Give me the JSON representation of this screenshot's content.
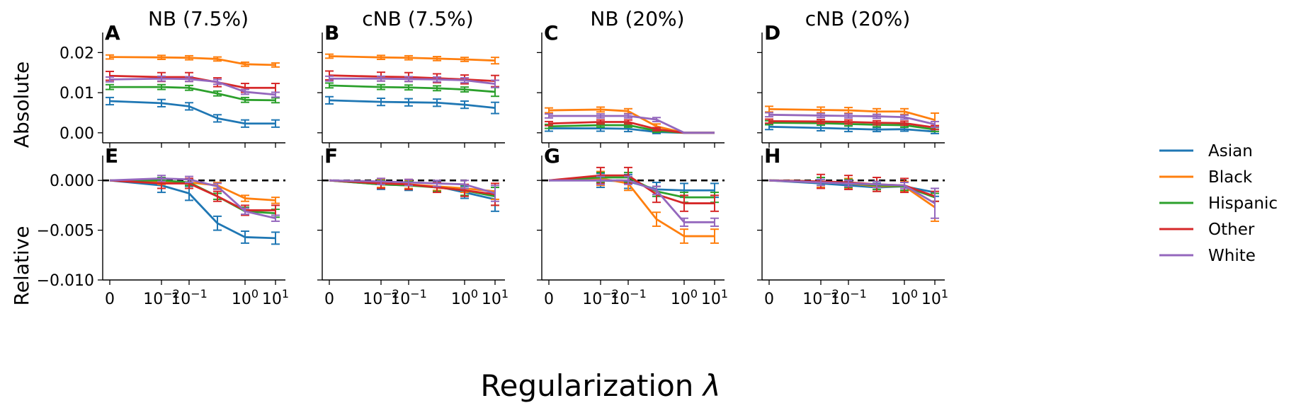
{
  "chart_data": {
    "type": "line",
    "xlabel": "Regularization λ",
    "x_categories": [
      "0",
      "10^-2",
      "10^-1",
      "10^0",
      "10^1"
    ],
    "x": [
      0,
      0.0125,
      0.075,
      0.4,
      2.0,
      10.0
    ],
    "row_labels": [
      "Absolute",
      "Relative"
    ],
    "legend": [
      "Asian",
      "Black",
      "Hispanic",
      "Other",
      "White"
    ],
    "colors": {
      "Asian": "#1f77b4",
      "Black": "#ff7f0e",
      "Hispanic": "#2ca02c",
      "Other": "#d62728",
      "White": "#9467bd"
    },
    "rows": [
      {
        "name": "Absolute",
        "ylim": [
          -0.0025,
          0.025
        ],
        "yticks": [
          "0.00",
          "0.01",
          "0.02"
        ],
        "ytick_values": [
          0,
          0.01,
          0.02
        ]
      },
      {
        "name": "Relative",
        "ylim": [
          -0.01,
          0.0025
        ],
        "yticks": [
          "−0.010",
          "−0.005",
          "0.000"
        ],
        "ytick_values": [
          -0.01,
          -0.005,
          0
        ],
        "zero_line": true
      }
    ],
    "panels": [
      {
        "letter": "A",
        "title": "NB (7.5%)",
        "row": 0,
        "col": 0,
        "series": [
          {
            "name": "Asian",
            "values": [
              0.0079,
              0.0074,
              0.0066,
              0.0036,
              0.0023,
              0.0023
            ],
            "err": [
              0.0009,
              0.0009,
              0.0009,
              0.0009,
              0.0009,
              0.0009
            ]
          },
          {
            "name": "Black",
            "values": [
              0.0189,
              0.0188,
              0.0187,
              0.0184,
              0.0171,
              0.0169
            ],
            "err": [
              0.0005,
              0.0005,
              0.0005,
              0.0005,
              0.0005,
              0.0005
            ]
          },
          {
            "name": "Hispanic",
            "values": [
              0.0114,
              0.0114,
              0.0112,
              0.0098,
              0.0082,
              0.0081
            ],
            "err": [
              0.0006,
              0.0006,
              0.0006,
              0.0006,
              0.0006,
              0.0006
            ]
          },
          {
            "name": "Other",
            "values": [
              0.0142,
              0.0139,
              0.0139,
              0.0126,
              0.0112,
              0.0112
            ],
            "err": [
              0.0011,
              0.0011,
              0.0011,
              0.0011,
              0.0011,
              0.0011
            ]
          },
          {
            "name": "White",
            "values": [
              0.0133,
              0.0135,
              0.0134,
              0.0127,
              0.0102,
              0.0095
            ],
            "err": [
              0.0006,
              0.0006,
              0.0006,
              0.0006,
              0.0006,
              0.0006
            ]
          }
        ]
      },
      {
        "letter": "B",
        "title": "cNB (7.5%)",
        "row": 0,
        "col": 1,
        "series": [
          {
            "name": "Asian",
            "values": [
              0.0081,
              0.0077,
              0.0076,
              0.0075,
              0.007,
              0.0062
            ],
            "err": [
              0.0009,
              0.0009,
              0.0009,
              0.0009,
              0.0009,
              0.0014
            ]
          },
          {
            "name": "Black",
            "values": [
              0.0191,
              0.0188,
              0.0187,
              0.0185,
              0.0183,
              0.018
            ],
            "err": [
              0.0005,
              0.0005,
              0.0005,
              0.0005,
              0.0005,
              0.0008
            ]
          },
          {
            "name": "Hispanic",
            "values": [
              0.0118,
              0.0114,
              0.0113,
              0.0111,
              0.0108,
              0.0102
            ],
            "err": [
              0.0006,
              0.0006,
              0.0006,
              0.0006,
              0.0006,
              0.0011
            ]
          },
          {
            "name": "Other",
            "values": [
              0.0143,
              0.014,
              0.0139,
              0.0136,
              0.0133,
              0.0129
            ],
            "err": [
              0.0011,
              0.0011,
              0.0011,
              0.0011,
              0.0011,
              0.0014
            ]
          },
          {
            "name": "White",
            "values": [
              0.0135,
              0.0135,
              0.0134,
              0.0133,
              0.0131,
              0.0122
            ],
            "err": [
              0.0006,
              0.0006,
              0.0006,
              0.0006,
              0.0006,
              0.0009
            ]
          }
        ]
      },
      {
        "letter": "C",
        "title": "NB (20%)",
        "row": 0,
        "col": 2,
        "series": [
          {
            "name": "Asian",
            "values": [
              0.0011,
              0.0011,
              0.001,
              0.0002,
              0.0,
              0.0
            ],
            "err": [
              0.0007,
              0.0007,
              0.0007,
              0.0004,
              0,
              0
            ]
          },
          {
            "name": "Black",
            "values": [
              0.0056,
              0.0058,
              0.0054,
              0.0016,
              0.0,
              0.0
            ],
            "err": [
              0.0006,
              0.0006,
              0.0006,
              0.0006,
              0,
              0
            ]
          },
          {
            "name": "Hispanic",
            "values": [
              0.0016,
              0.0019,
              0.0019,
              0.0005,
              0.0,
              0.0
            ],
            "err": [
              0.0005,
              0.0005,
              0.0005,
              0.0004,
              0,
              0
            ]
          },
          {
            "name": "Other",
            "values": [
              0.0023,
              0.0027,
              0.0027,
              0.0009,
              0.0,
              0.0
            ],
            "err": [
              0.0005,
              0.0005,
              0.0005,
              0.0004,
              0,
              0
            ]
          },
          {
            "name": "White",
            "values": [
              0.0042,
              0.0042,
              0.0042,
              0.0033,
              0.0,
              0.0
            ],
            "err": [
              0.0005,
              0.0005,
              0.0005,
              0.0005,
              0,
              0
            ]
          }
        ]
      },
      {
        "letter": "D",
        "title": "cNB (20%)",
        "row": 0,
        "col": 3,
        "series": [
          {
            "name": "Asian",
            "values": [
              0.0015,
              0.0012,
              0.001,
              0.0008,
              0.0009,
              0.0003
            ],
            "err": [
              0.0007,
              0.0007,
              0.0007,
              0.0005,
              0.0005,
              0.0005
            ]
          },
          {
            "name": "Black",
            "values": [
              0.0059,
              0.0057,
              0.0056,
              0.0053,
              0.0053,
              0.0032
            ],
            "err": [
              0.0007,
              0.0007,
              0.0007,
              0.0007,
              0.0007,
              0.0017
            ]
          },
          {
            "name": "Hispanic",
            "values": [
              0.0025,
              0.0024,
              0.0022,
              0.002,
              0.0019,
              0.0008
            ],
            "err": [
              0.0005,
              0.0005,
              0.0005,
              0.0005,
              0.0005,
              0.0005
            ]
          },
          {
            "name": "Other",
            "values": [
              0.0029,
              0.0028,
              0.0027,
              0.0025,
              0.0024,
              0.0013
            ],
            "err": [
              0.0005,
              0.0005,
              0.0005,
              0.0005,
              0.0005,
              0.0005
            ]
          },
          {
            "name": "White",
            "values": [
              0.0045,
              0.0043,
              0.0042,
              0.0041,
              0.0039,
              0.0021
            ],
            "err": [
              0.0005,
              0.0005,
              0.0005,
              0.0005,
              0.0005,
              0.0007
            ]
          }
        ]
      },
      {
        "letter": "E",
        "title": "",
        "row": 1,
        "col": 0,
        "series": [
          {
            "name": "Asian",
            "values": [
              0.0,
              -0.0005,
              -0.0013,
              -0.0043,
              -0.0057,
              -0.0058
            ],
            "err": [
              0,
              0.0007,
              0.0007,
              0.0007,
              0.0006,
              0.0006
            ]
          },
          {
            "name": "Black",
            "values": [
              0.0,
              -0.0001,
              -0.0002,
              -0.0005,
              -0.0018,
              -0.002
            ],
            "err": [
              0,
              0.0003,
              0.0003,
              0.0003,
              0.0003,
              0.0003
            ]
          },
          {
            "name": "Hispanic",
            "values": [
              0.0,
              0.0,
              -0.0002,
              -0.0016,
              -0.0031,
              -0.0033
            ],
            "err": [
              0,
              0.0003,
              0.0003,
              0.0003,
              0.0004,
              0.0004
            ]
          },
          {
            "name": "Other",
            "values": [
              0.0,
              -0.0003,
              -0.0003,
              -0.0016,
              -0.003,
              -0.003
            ],
            "err": [
              0,
              0.0005,
              0.0005,
              0.0005,
              0.0005,
              0.0005
            ]
          },
          {
            "name": "White",
            "values": [
              0.0,
              0.0002,
              0.0001,
              -0.0006,
              -0.0031,
              -0.0038
            ],
            "err": [
              0,
              0.0003,
              0.0003,
              0.0003,
              0.0003,
              0.0003
            ]
          }
        ]
      },
      {
        "letter": "F",
        "title": "",
        "row": 1,
        "col": 1,
        "series": [
          {
            "name": "Asian",
            "values": [
              0.0,
              -0.0004,
              -0.0005,
              -0.0006,
              -0.0012,
              -0.0019
            ],
            "err": [
              0,
              0.0005,
              0.0005,
              0.0005,
              0.0006,
              0.0012
            ]
          },
          {
            "name": "Black",
            "values": [
              0.0,
              -0.0003,
              -0.0004,
              -0.0006,
              -0.0008,
              -0.0011
            ],
            "err": [
              0,
              0.0004,
              0.0004,
              0.0004,
              0.0004,
              0.0008
            ]
          },
          {
            "name": "Hispanic",
            "values": [
              0.0,
              -0.0004,
              -0.0005,
              -0.0007,
              -0.001,
              -0.0016
            ],
            "err": [
              0,
              0.0004,
              0.0004,
              0.0004,
              0.0005,
              0.0009
            ]
          },
          {
            "name": "Other",
            "values": [
              0.0,
              -0.0003,
              -0.0004,
              -0.0007,
              -0.001,
              -0.0014
            ],
            "err": [
              0,
              0.0005,
              0.0005,
              0.0005,
              0.0006,
              0.0011
            ]
          },
          {
            "name": "White",
            "values": [
              0.0,
              -0.0001,
              -0.0002,
              -0.0003,
              -0.0004,
              -0.0013
            ],
            "err": [
              0,
              0.0003,
              0.0003,
              0.0003,
              0.0004,
              0.0008
            ]
          }
        ]
      },
      {
        "letter": "G",
        "title": "",
        "row": 1,
        "col": 2,
        "series": [
          {
            "name": "Asian",
            "values": [
              0.0,
              0.0,
              -0.0001,
              -0.0009,
              -0.001,
              -0.001
            ],
            "err": [
              0,
              0.0007,
              0.0007,
              0.0007,
              0.0007,
              0.0007
            ]
          },
          {
            "name": "Black",
            "values": [
              0.0,
              0.0002,
              -0.0003,
              -0.0039,
              -0.0056,
              -0.0056
            ],
            "err": [
              0,
              0.0007,
              0.0007,
              0.0007,
              0.0007,
              0.0007
            ]
          },
          {
            "name": "Hispanic",
            "values": [
              0.0,
              0.0003,
              0.0003,
              -0.0011,
              -0.0017,
              -0.0017
            ],
            "err": [
              0,
              0.0005,
              0.0005,
              0.0005,
              0.0005,
              0.0005
            ]
          },
          {
            "name": "Other",
            "values": [
              0.0,
              0.0005,
              0.0005,
              -0.0014,
              -0.0023,
              -0.0023
            ],
            "err": [
              0,
              0.0008,
              0.0008,
              0.0008,
              0.0008,
              0.0008
            ]
          },
          {
            "name": "White",
            "values": [
              0.0,
              0.0,
              0.0,
              -0.001,
              -0.0042,
              -0.0042
            ],
            "err": [
              0,
              0.0004,
              0.0004,
              0.0004,
              0.0004,
              0.0004
            ]
          }
        ]
      },
      {
        "letter": "H",
        "title": "",
        "row": 1,
        "col": 3,
        "series": [
          {
            "name": "Asian",
            "values": [
              0.0,
              -0.0003,
              -0.0005,
              -0.0007,
              -0.0006,
              -0.0012
            ],
            "err": [
              0,
              0.0004,
              0.0004,
              0.0004,
              0.0004,
              0.0004
            ]
          },
          {
            "name": "Black",
            "values": [
              0.0,
              -0.0002,
              -0.0003,
              -0.0006,
              -0.0006,
              -0.0027
            ],
            "err": [
              0,
              0.0005,
              0.0005,
              0.0005,
              0.0005,
              0.0014
            ]
          },
          {
            "name": "Hispanic",
            "values": [
              0.0,
              -0.0001,
              -0.0003,
              -0.0005,
              -0.0006,
              -0.0017
            ],
            "err": [
              0,
              0.0004,
              0.0004,
              0.0004,
              0.0004,
              0.0004
            ]
          },
          {
            "name": "Other",
            "values": [
              0.0,
              -0.0001,
              -0.0002,
              -0.0004,
              -0.0005,
              -0.0016
            ],
            "err": [
              0,
              0.0007,
              0.0007,
              0.0007,
              0.0007,
              0.0005
            ]
          },
          {
            "name": "White",
            "values": [
              0.0,
              -0.0002,
              -0.0003,
              -0.0004,
              -0.0005,
              -0.0023
            ],
            "err": [
              0,
              0.0003,
              0.0003,
              0.0003,
              0.0003,
              0.0015
            ]
          }
        ]
      }
    ]
  }
}
